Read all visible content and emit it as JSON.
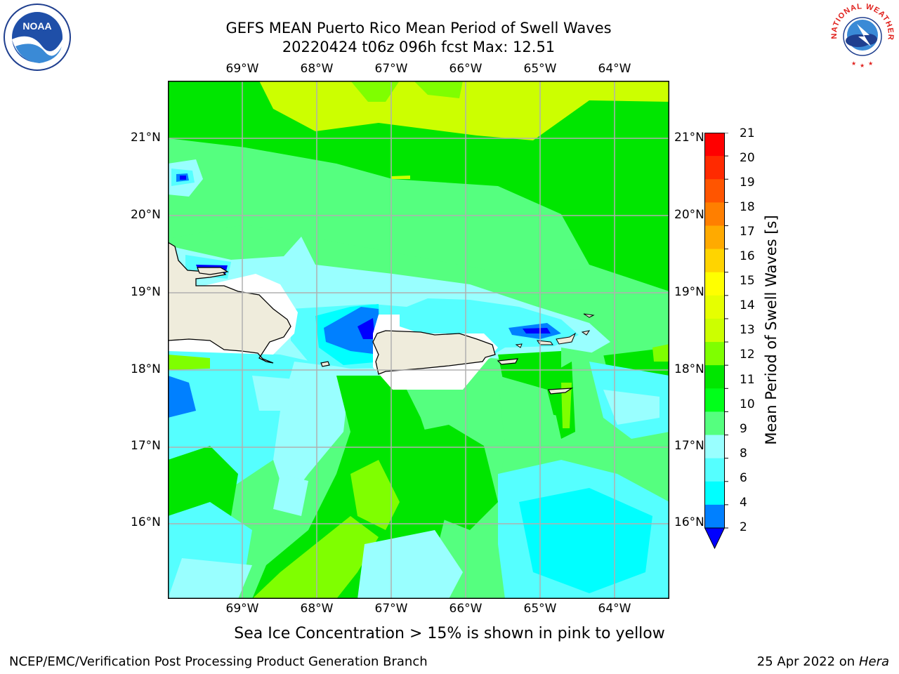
{
  "title": {
    "line1": "GEFS MEAN Puerto Rico Mean Period of Swell Waves",
    "line2": "20220424 t06z 096h fcst   Max: 12.51"
  },
  "map": {
    "lon_labels": [
      "69°W",
      "68°W",
      "67°W",
      "66°W",
      "65°W",
      "64°W"
    ],
    "lat_labels": [
      "21°N",
      "20°N",
      "19°N",
      "18°N",
      "17°N",
      "16°N"
    ],
    "land_color": "#efecdc"
  },
  "colorbar": {
    "title": "Mean Period of Swell Waves [s]",
    "levels": [
      "21",
      "20",
      "19",
      "18",
      "17",
      "16",
      "15",
      "14",
      "13",
      "12",
      "11",
      "10",
      "9",
      "8",
      "6",
      "4",
      "2"
    ],
    "colors": [
      "#ff0000",
      "#ff2a00",
      "#ff5500",
      "#ff7f00",
      "#ffaa00",
      "#ffd400",
      "#ffff00",
      "#e6ff00",
      "#ccff00",
      "#7fff00",
      "#00e600",
      "#00ff1a",
      "#55ff7f",
      "#99ffff",
      "#55ffff",
      "#00ffff",
      "#0080ff",
      "#0000ff"
    ]
  },
  "caption": "Sea Ice Concentration > 15% is shown in pink to yellow",
  "footer": {
    "left": "NCEP/EMC/Verification Post Processing Product Generation Branch",
    "right_prefix": "25 Apr 2022 on ",
    "right_host": "Hera"
  },
  "logos": {
    "noaa_text": "NOAA",
    "nws_text": "NATIONAL WEATHER SERVICE"
  }
}
